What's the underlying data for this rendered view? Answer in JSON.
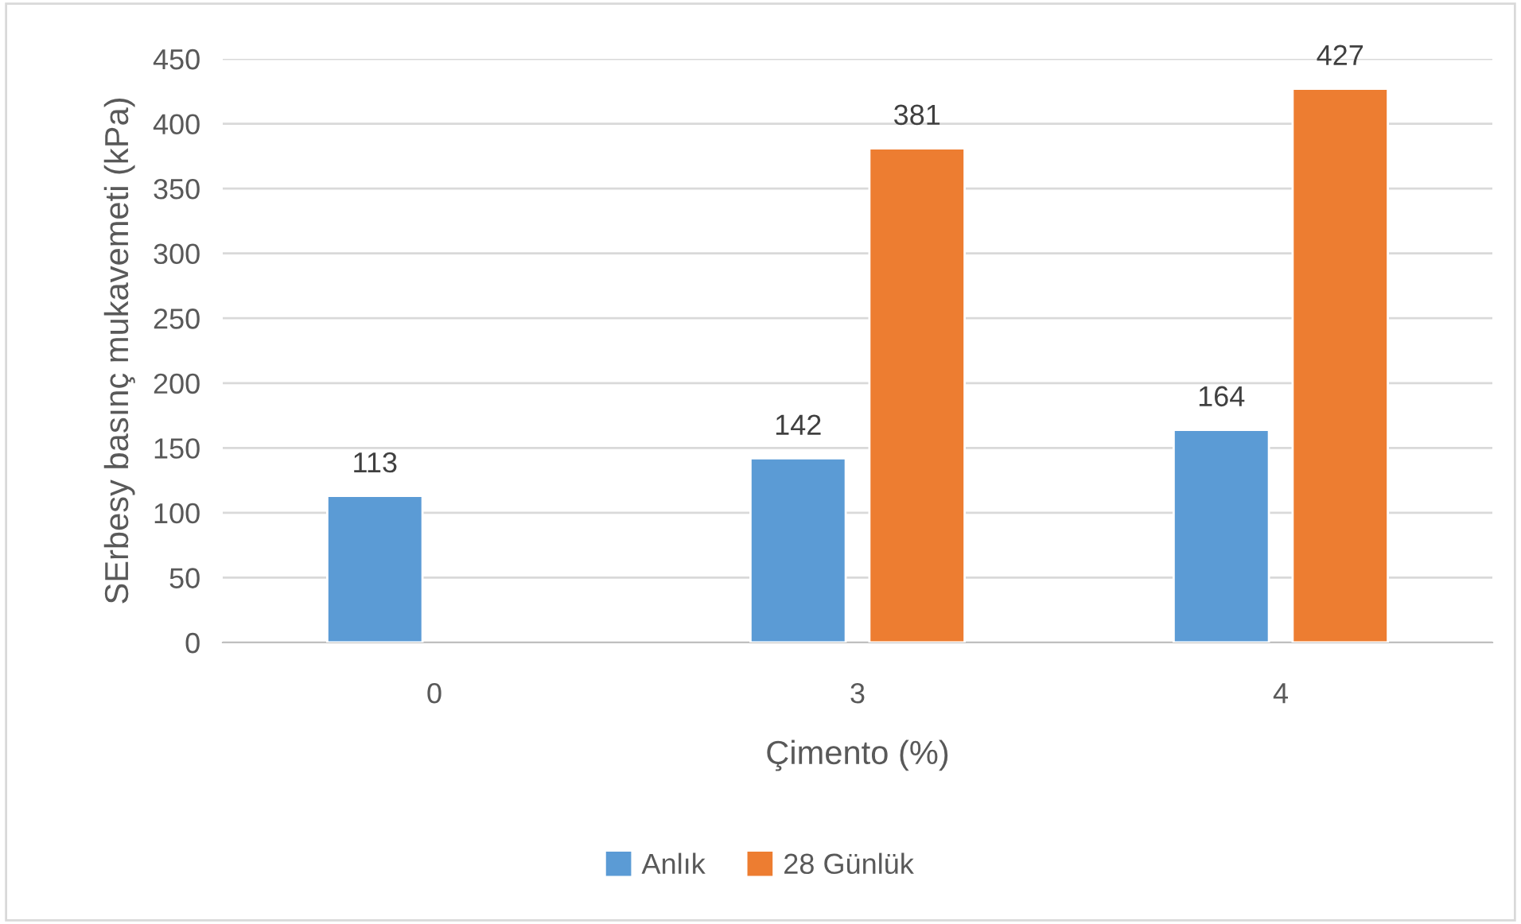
{
  "chart_data": {
    "type": "bar",
    "xlabel": "Çimento (%)",
    "ylabel": "SErbesy basınç mukavemeti (kPa)",
    "categories": [
      "0",
      "3",
      "4"
    ],
    "series": [
      {
        "name": "Anlık",
        "color": "#5b9bd5",
        "values": [
          113,
          142,
          164
        ]
      },
      {
        "name": "28 Günlük",
        "color": "#ed7d31",
        "values": [
          null,
          381,
          427
        ]
      }
    ],
    "ylim": [
      0,
      450
    ],
    "yticks": [
      0,
      50,
      100,
      150,
      200,
      250,
      300,
      350,
      400,
      450
    ],
    "grid": "y",
    "legend": "bottom",
    "data_labels": true
  }
}
